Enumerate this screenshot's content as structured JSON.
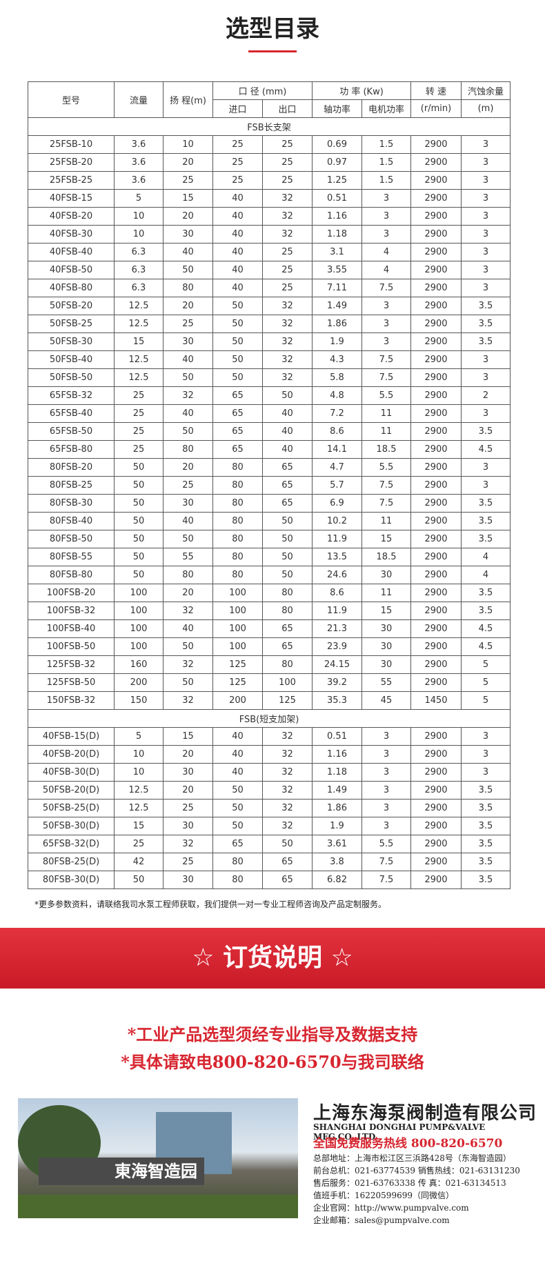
{
  "header": {
    "title": "选型目录"
  },
  "table": {
    "header_top": [
      "型号",
      "流量",
      "扬 程(m)",
      "口 径 (mm)",
      "功 率 (Kw)",
      "转 速",
      "汽蚀余量"
    ],
    "header_bottom": [
      "进口",
      "出口",
      "轴功率",
      "电机功率",
      "(r/min)",
      "(m)"
    ],
    "sections": [
      {
        "label": "FSB长支架",
        "rows": [
          [
            "25FSB-10",
            "3.6",
            "10",
            "25",
            "25",
            "0.69",
            "1.5",
            "2900",
            "3"
          ],
          [
            "25FSB-20",
            "3.6",
            "20",
            "25",
            "25",
            "0.97",
            "1.5",
            "2900",
            "3"
          ],
          [
            "25FSB-25",
            "3.6",
            "25",
            "25",
            "25",
            "1.25",
            "1.5",
            "2900",
            "3"
          ],
          [
            "40FSB-15",
            "5",
            "15",
            "40",
            "32",
            "0.51",
            "3",
            "2900",
            "3"
          ],
          [
            "40FSB-20",
            "10",
            "20",
            "40",
            "32",
            "1.16",
            "3",
            "2900",
            "3"
          ],
          [
            "40FSB-30",
            "10",
            "30",
            "40",
            "32",
            "1.18",
            "3",
            "2900",
            "3"
          ],
          [
            "40FSB-40",
            "6.3",
            "40",
            "40",
            "25",
            "3.1",
            "4",
            "2900",
            "3"
          ],
          [
            "40FSB-50",
            "6.3",
            "50",
            "40",
            "25",
            "3.55",
            "4",
            "2900",
            "3"
          ],
          [
            "40FSB-80",
            "6.3",
            "80",
            "40",
            "25",
            "7.11",
            "7.5",
            "2900",
            "3"
          ],
          [
            "50FSB-20",
            "12.5",
            "20",
            "50",
            "32",
            "1.49",
            "3",
            "2900",
            "3.5"
          ],
          [
            "50FSB-25",
            "12.5",
            "25",
            "50",
            "32",
            "1.86",
            "3",
            "2900",
            "3.5"
          ],
          [
            "50FSB-30",
            "15",
            "30",
            "50",
            "32",
            "1.9",
            "3",
            "2900",
            "3.5"
          ],
          [
            "50FSB-40",
            "12.5",
            "40",
            "50",
            "32",
            "4.3",
            "7.5",
            "2900",
            "3"
          ],
          [
            "50FSB-50",
            "12.5",
            "50",
            "50",
            "32",
            "5.8",
            "7.5",
            "2900",
            "3"
          ],
          [
            "65FSB-32",
            "25",
            "32",
            "65",
            "50",
            "4.8",
            "5.5",
            "2900",
            "2"
          ],
          [
            "65FSB-40",
            "25",
            "40",
            "65",
            "40",
            "7.2",
            "11",
            "2900",
            "3"
          ],
          [
            "65FSB-50",
            "25",
            "50",
            "65",
            "40",
            "8.6",
            "11",
            "2900",
            "3.5"
          ],
          [
            "65FSB-80",
            "25",
            "80",
            "65",
            "40",
            "14.1",
            "18.5",
            "2900",
            "4.5"
          ],
          [
            "80FSB-20",
            "50",
            "20",
            "80",
            "65",
            "4.7",
            "5.5",
            "2900",
            "3"
          ],
          [
            "80FSB-25",
            "50",
            "25",
            "80",
            "65",
            "5.7",
            "7.5",
            "2900",
            "3"
          ],
          [
            "80FSB-30",
            "50",
            "30",
            "80",
            "65",
            "6.9",
            "7.5",
            "2900",
            "3.5"
          ],
          [
            "80FSB-40",
            "50",
            "40",
            "80",
            "50",
            "10.2",
            "11",
            "2900",
            "3.5"
          ],
          [
            "80FSB-50",
            "50",
            "50",
            "80",
            "50",
            "11.9",
            "15",
            "2900",
            "3.5"
          ],
          [
            "80FSB-55",
            "50",
            "55",
            "80",
            "50",
            "13.5",
            "18.5",
            "2900",
            "4"
          ],
          [
            "80FSB-80",
            "50",
            "80",
            "80",
            "50",
            "24.6",
            "30",
            "2900",
            "4"
          ],
          [
            "100FSB-20",
            "100",
            "20",
            "100",
            "80",
            "8.6",
            "11",
            "2900",
            "3.5"
          ],
          [
            "100FSB-32",
            "100",
            "32",
            "100",
            "80",
            "11.9",
            "15",
            "2900",
            "3.5"
          ],
          [
            "100FSB-40",
            "100",
            "40",
            "100",
            "65",
            "21.3",
            "30",
            "2900",
            "4.5"
          ],
          [
            "100FSB-50",
            "100",
            "50",
            "100",
            "65",
            "23.9",
            "30",
            "2900",
            "4.5"
          ],
          [
            "125FSB-32",
            "160",
            "32",
            "125",
            "80",
            "24.15",
            "30",
            "2900",
            "5"
          ],
          [
            "125FSB-50",
            "200",
            "50",
            "125",
            "100",
            "39.2",
            "55",
            "2900",
            "5"
          ],
          [
            "150FSB-32",
            "150",
            "32",
            "200",
            "125",
            "35.3",
            "45",
            "1450",
            "5"
          ]
        ]
      },
      {
        "label": "FSB(短支加架)",
        "rows": [
          [
            "40FSB-15(D)",
            "5",
            "15",
            "40",
            "32",
            "0.51",
            "3",
            "2900",
            "3"
          ],
          [
            "40FSB-20(D)",
            "10",
            "20",
            "40",
            "32",
            "1.16",
            "3",
            "2900",
            "3"
          ],
          [
            "40FSB-30(D)",
            "10",
            "30",
            "40",
            "32",
            "1.18",
            "3",
            "2900",
            "3"
          ],
          [
            "50FSB-20(D)",
            "12.5",
            "20",
            "50",
            "32",
            "1.49",
            "3",
            "2900",
            "3.5"
          ],
          [
            "50FSB-25(D)",
            "12.5",
            "25",
            "50",
            "32",
            "1.86",
            "3",
            "2900",
            "3.5"
          ],
          [
            "50FSB-30(D)",
            "15",
            "30",
            "50",
            "32",
            "1.9",
            "3",
            "2900",
            "3.5"
          ],
          [
            "65FSB-32(D)",
            "25",
            "32",
            "65",
            "50",
            "3.61",
            "5.5",
            "2900",
            "3.5"
          ],
          [
            "80FSB-25(D)",
            "42",
            "25",
            "80",
            "65",
            "3.8",
            "7.5",
            "2900",
            "3.5"
          ],
          [
            "80FSB-30(D)",
            "50",
            "30",
            "80",
            "65",
            "6.82",
            "7.5",
            "2900",
            "3.5"
          ]
        ]
      }
    ]
  },
  "note": "*更多参数资料，请联络我司水泵工程师获取，我们提供一对一专业工程师咨询及产品定制服务。",
  "order": {
    "title": "☆ 订货说明 ☆",
    "lines": [
      "*工业产品选型须经专业指导及数据支持",
      "*具体请致电800-820-6570与我司联络"
    ]
  },
  "company": {
    "sign": "東海智造园",
    "name": "上海东海泵阀制造有限公司",
    "name_en": "SHANGHAI DONGHAI PUMP&VALVE MFG.CO.,LTD.",
    "hotline": "全国免费服务热线  800-820-6570",
    "details": [
      "总部地址：上海市松江区三浜路428号（东海智造园）",
      "前台总机：021-63774539   销售热线：021-63131230",
      "售后服务：021-63763338   传    真：021-63134513",
      "值班手机：16220599699（同微信）",
      "企业官网：http://www.pumpvalve.com",
      "企业邮箱：sales@pumpvalve.com"
    ]
  }
}
